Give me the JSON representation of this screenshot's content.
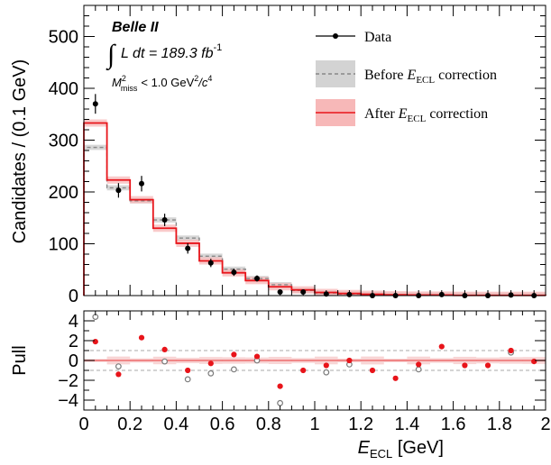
{
  "chart_data": [
    {
      "type": "line",
      "panel": "main",
      "ylabel": "Candidates / (0.1 GeV)",
      "xlim": [
        0,
        2
      ],
      "ylim": [
        0,
        560
      ],
      "y_ticks": [
        "0",
        "100",
        "200",
        "300",
        "400",
        "500"
      ],
      "bin_edges": [
        0,
        0.1,
        0.2,
        0.3,
        0.4,
        0.5,
        0.6,
        0.7,
        0.8,
        0.9,
        1.0,
        1.1,
        1.2,
        1.3,
        1.4,
        1.5,
        1.6,
        1.7,
        1.8,
        1.9,
        2.0
      ],
      "annotations": {
        "experiment": "Belle II",
        "integral": "∫",
        "lumi": "L dt = 189.3 fb",
        "lumi_sup": "-1",
        "cut_m": "M",
        "cut_sup": "2",
        "cut_sub": "miss",
        "cut_rest": "< 1.0 GeV",
        "cut_sup2": "2",
        "cut_c": "/c",
        "cut_sup3": "4"
      },
      "legend": {
        "placement": "top-right",
        "data": "Data",
        "before_prefix": "Before ",
        "before_E": "E",
        "before_sub": "ECL",
        "before_suffix": " correction",
        "after_prefix": "After ",
        "after_E": "E",
        "after_sub": "ECL",
        "after_suffix": " correction"
      },
      "series": [
        {
          "name": "Data",
          "x": [
            0.05,
            0.15,
            0.25,
            0.35,
            0.45,
            0.55,
            0.65,
            0.75,
            0.85,
            0.95,
            1.05,
            1.15,
            1.25,
            1.35,
            1.45,
            1.55,
            1.65,
            1.75,
            1.85,
            1.95
          ],
          "values": [
            370,
            203,
            216,
            146,
            91,
            63,
            45,
            33,
            7,
            7,
            3,
            2,
            0,
            0,
            0,
            2,
            0,
            0,
            1,
            0
          ],
          "errors": [
            19,
            14,
            15,
            12,
            10,
            8,
            7,
            6,
            3,
            3,
            2,
            1.5,
            0,
            0,
            0,
            1.5,
            0,
            0,
            1,
            0
          ],
          "color": "#000000"
        },
        {
          "name": "Before E_ECL correction",
          "values": [
            286,
            208,
            183,
            146,
            111,
            76,
            51,
            33,
            21,
            10,
            5,
            3,
            2,
            1.5,
            1,
            1,
            0.5,
            0.5,
            0.5,
            0.5
          ],
          "band": 5,
          "color": "#888888",
          "band_color": "#d3d3d3"
        },
        {
          "name": "After E_ECL correction",
          "values": [
            333,
            223,
            185,
            130,
            101,
            67,
            44,
            29,
            17,
            11,
            6,
            4,
            2.5,
            1.5,
            1,
            1,
            0.5,
            0.5,
            0.5,
            0.5
          ],
          "band": 7,
          "color": "#e8141a",
          "band_color": "#f7b8b8"
        }
      ]
    },
    {
      "type": "scatter",
      "panel": "pull",
      "xlabel_E": "E",
      "xlabel_sub": "ECL",
      "xlabel_rest": " [GeV]",
      "ylabel": "Pull",
      "xlim": [
        0,
        2
      ],
      "ylim": [
        -5,
        5
      ],
      "y_ticks": [
        "4",
        "2",
        "0",
        "−2",
        "−4"
      ],
      "x_ticks": [
        "0",
        "0.2",
        "0.4",
        "0.6",
        "0.8",
        "1",
        "1.2",
        "1.4",
        "1.6",
        "1.8",
        "2"
      ],
      "reference_lines": [
        -1,
        1
      ],
      "series": [
        {
          "name": "Pull (before correction)",
          "x": [
            0.05,
            0.15,
            0.35,
            0.45,
            0.55,
            0.65,
            0.75,
            0.85,
            1.05,
            1.15,
            1.45,
            1.85
          ],
          "values": [
            4.4,
            -0.6,
            -0.1,
            -1.9,
            -1.3,
            -0.9,
            0.0,
            -4.3,
            -1.2,
            -0.4,
            -0.9,
            0.8
          ],
          "color": "#7a7a7a",
          "marker": "open-circle"
        },
        {
          "name": "Pull (after correction)",
          "x": [
            0.05,
            0.15,
            0.25,
            0.35,
            0.45,
            0.55,
            0.65,
            0.75,
            0.85,
            0.95,
            1.05,
            1.15,
            1.25,
            1.35,
            1.45,
            1.55,
            1.65,
            1.75,
            1.85,
            1.95
          ],
          "values": [
            1.9,
            -1.4,
            2.3,
            1.1,
            -1.0,
            -0.3,
            0.6,
            0.4,
            -2.6,
            -1.0,
            -0.5,
            0.0,
            -1.0,
            -1.8,
            -0.4,
            1.4,
            -0.5,
            -0.5,
            1.0,
            -0.1
          ],
          "color": "#e8141a",
          "marker": "filled-circle"
        }
      ]
    }
  ]
}
